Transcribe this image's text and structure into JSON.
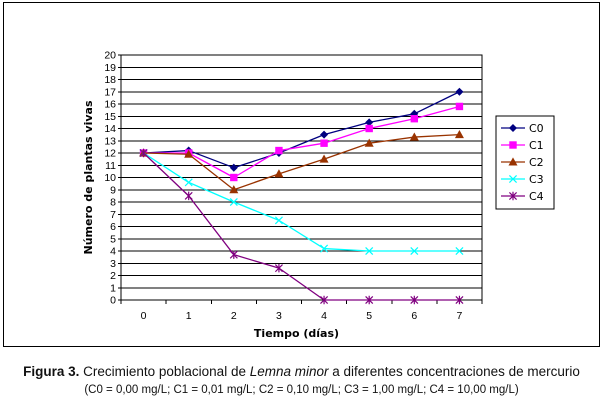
{
  "chart_data": {
    "type": "line",
    "title": "",
    "xlabel": "Tiempo (días)",
    "ylabel": "Número de plantas vivas",
    "x": [
      0,
      1,
      2,
      3,
      4,
      5,
      6,
      7
    ],
    "xlim": [
      0,
      7
    ],
    "ylim": [
      0,
      20
    ],
    "yticks": [
      0,
      1,
      2,
      3,
      4,
      5,
      6,
      7,
      8,
      9,
      10,
      11,
      12,
      13,
      14,
      15,
      16,
      17,
      18,
      19,
      20
    ],
    "grid": "horizontal",
    "legend_position": "right",
    "series": [
      {
        "name": "C0",
        "color": "#000080",
        "marker": "diamond",
        "values": [
          12,
          12.2,
          10.8,
          12,
          13.5,
          14.5,
          15.2,
          17
        ]
      },
      {
        "name": "C1",
        "color": "#FF00FF",
        "marker": "square",
        "values": [
          12,
          12,
          10,
          12.2,
          12.8,
          14,
          14.8,
          15.8
        ]
      },
      {
        "name": "C2",
        "color": "#993300",
        "marker": "triangle",
        "values": [
          12,
          11.9,
          9,
          10.3,
          11.5,
          12.8,
          13.3,
          13.5
        ]
      },
      {
        "name": "C3",
        "color": "#00FFFF",
        "marker": "x",
        "values": [
          12,
          9.6,
          8,
          6.5,
          4.2,
          4,
          4,
          4
        ]
      },
      {
        "name": "C4",
        "color": "#800080",
        "marker": "star",
        "values": [
          12,
          8.5,
          3.7,
          2.6,
          0,
          0,
          0,
          0
        ]
      }
    ]
  },
  "caption": {
    "figure_label": "Figura 3.",
    "text_before": " Crecimiento poblacional de ",
    "species": "Lemna minor",
    "text_after": " a diferentes concentraciones de mercurio",
    "sub": "(C0 = 0,00 mg/L; C1 =  0,01 mg/L; C2 = 0,10 mg/L; C3 = 1,00 mg/L; C4 = 10,00 mg/L)"
  }
}
